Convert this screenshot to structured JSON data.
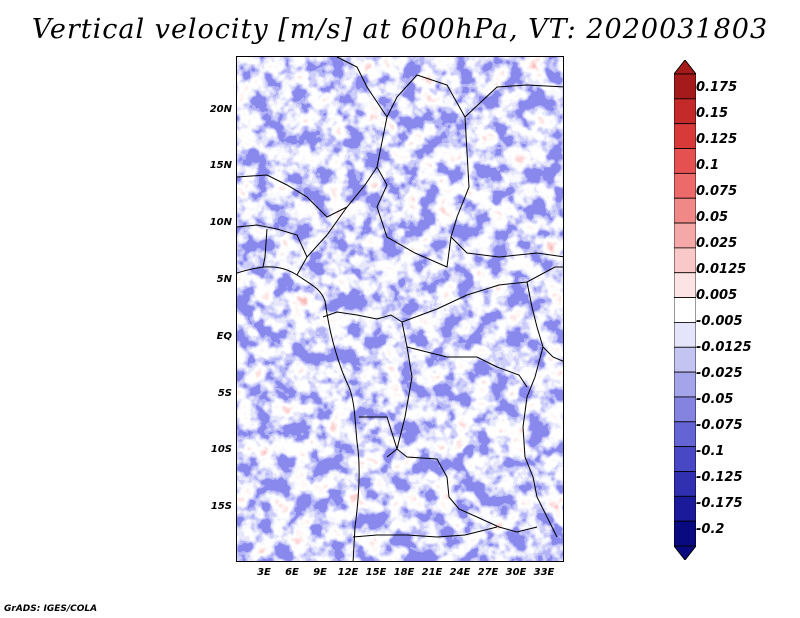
{
  "title": "Vertical velocity [m/s] at 600hPa, VT: 2020031803",
  "credit": "GrADS: IGES/COLA",
  "map": {
    "lat_labels": [
      "20N",
      "15N",
      "10N",
      "5N",
      "EQ",
      "5S",
      "10S",
      "15S"
    ],
    "lon_labels": [
      "3E",
      "6E",
      "9E",
      "12E",
      "15E",
      "18E",
      "21E",
      "24E",
      "27E",
      "30E",
      "33E"
    ]
  },
  "colorbar": {
    "labels": [
      "0.175",
      "0.15",
      "0.125",
      "0.1",
      "0.075",
      "0.05",
      "0.025",
      "0.0125",
      "0.005",
      "-0.005",
      "-0.0125",
      "-0.025",
      "-0.05",
      "-0.075",
      "-0.1",
      "-0.125",
      "-0.175",
      "-0.2"
    ],
    "colors": [
      "#a51a1a",
      "#c42a2a",
      "#d83a3a",
      "#e55050",
      "#ec6a6a",
      "#f08888",
      "#f5a8a8",
      "#f9c8c8",
      "#fde4e4",
      "#ffffff",
      "#e4e4fb",
      "#c4c4f2",
      "#a4a4ea",
      "#8484e0",
      "#6464d4",
      "#4848c4",
      "#3030b0",
      "#1a1a9a",
      "#0a0a80"
    ]
  }
}
